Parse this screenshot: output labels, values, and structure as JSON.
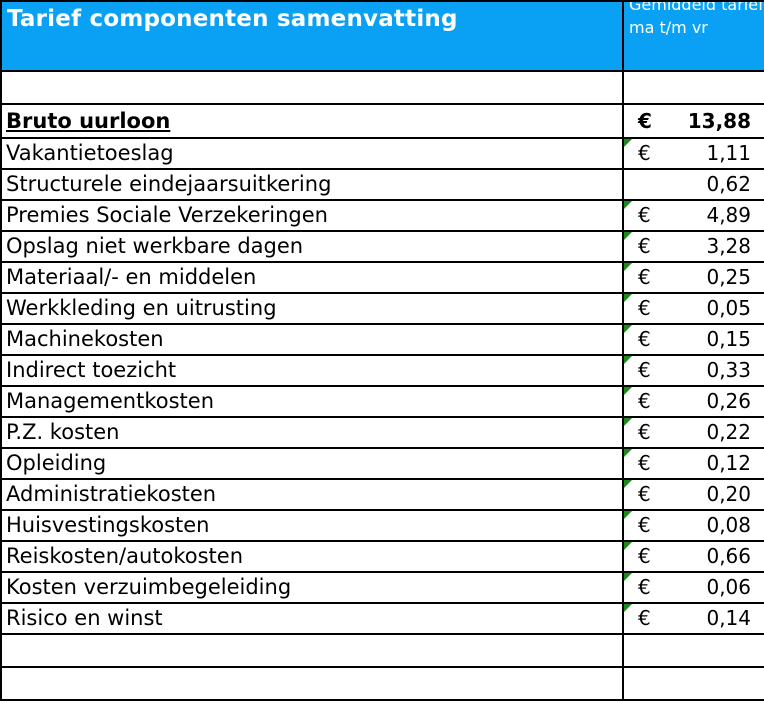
{
  "header": {
    "title": "Tarief componenten samenvatting",
    "column_label": "Gemiddeld tarief ma t/m vr"
  },
  "colors": {
    "header_bg": "#0aa1f5",
    "header_text": "#ffffff",
    "flag": "#1e8a1e"
  },
  "bruto": {
    "label": "Bruto uurloon",
    "currency": "€",
    "value": "13,88"
  },
  "rows": [
    {
      "label": "Vakantietoeslag",
      "currency": "€",
      "value": "1,11",
      "flag": true
    },
    {
      "label": "Structurele eindejaarsuitkering",
      "currency": "",
      "value": "0,62",
      "flag": false
    },
    {
      "label": "Premies Sociale Verzekeringen",
      "currency": "€",
      "value": "4,89",
      "flag": true
    },
    {
      "label": "Opslag niet werkbare dagen",
      "currency": "€",
      "value": "3,28",
      "flag": true
    },
    {
      "label": "Materiaal/- en middelen",
      "currency": "€",
      "value": "0,25",
      "flag": true
    },
    {
      "label": "Werkkleding en uitrusting",
      "currency": "€",
      "value": "0,05",
      "flag": true
    },
    {
      "label": "Machinekosten",
      "currency": "€",
      "value": "0,15",
      "flag": true
    },
    {
      "label": "Indirect toezicht",
      "currency": "€",
      "value": "0,33",
      "flag": true
    },
    {
      "label": "Managementkosten",
      "currency": "€",
      "value": "0,26",
      "flag": true
    },
    {
      "label": "P.Z. kosten",
      "currency": "€",
      "value": "0,22",
      "flag": true
    },
    {
      "label": "Opleiding",
      "currency": "€",
      "value": "0,12",
      "flag": true
    },
    {
      "label": "Administratiekosten",
      "currency": "€",
      "value": "0,20",
      "flag": true
    },
    {
      "label": "Huisvestingskosten",
      "currency": "€",
      "value": "0,08",
      "flag": true
    },
    {
      "label": "Reiskosten/autokosten",
      "currency": "€",
      "value": "0,66",
      "flag": true
    },
    {
      "label": "Kosten verzuimbegeleiding",
      "currency": "€",
      "value": "0,06",
      "flag": true
    },
    {
      "label": "Risico en winst",
      "currency": "€",
      "value": "0,14",
      "flag": true
    }
  ]
}
